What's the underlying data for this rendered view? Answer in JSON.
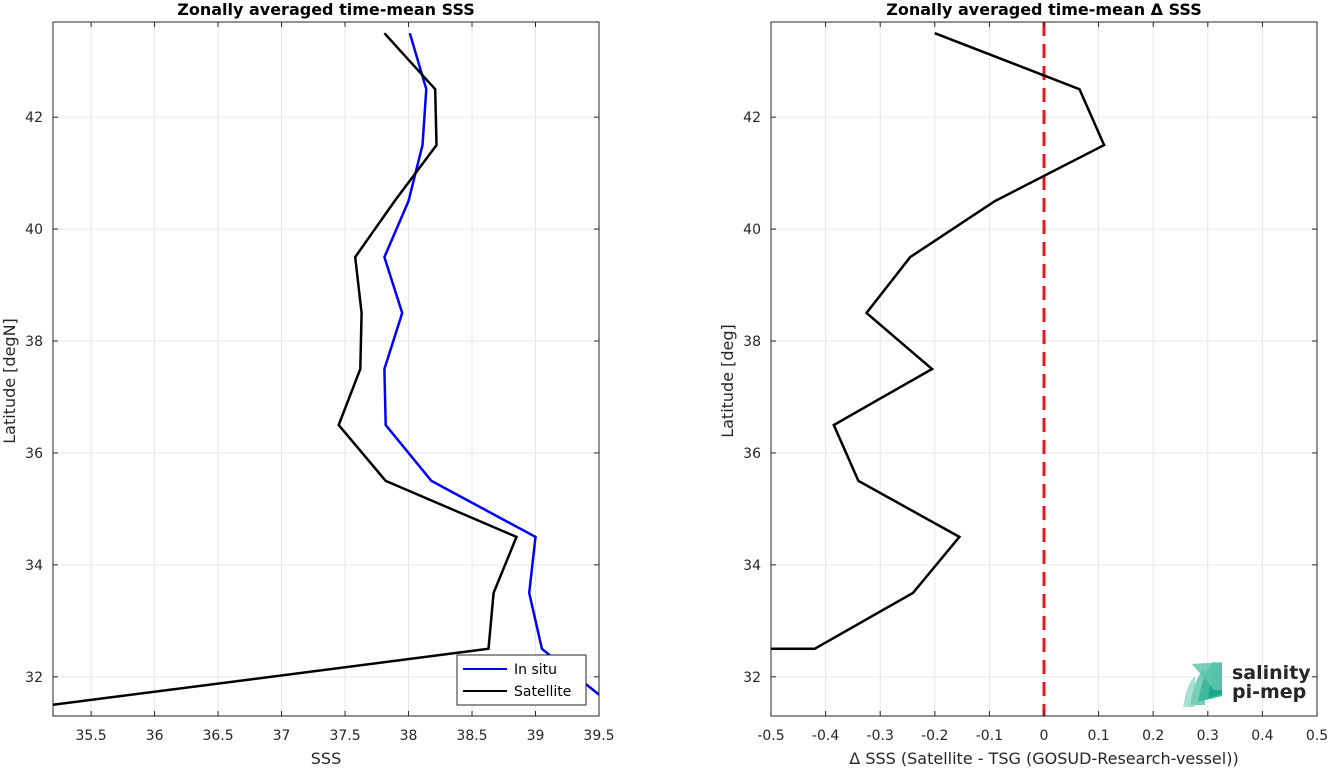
{
  "chart_data": [
    {
      "type": "line",
      "title": "Zonally averaged time-mean SSS",
      "xlabel": "SSS",
      "ylabel": "Latitude [degN]",
      "xlim": [
        35.2,
        39.5
      ],
      "ylim": [
        31.3,
        43.7
      ],
      "xticks": [
        "35.5",
        "36",
        "36.5",
        "37",
        "37.5",
        "38",
        "38.5",
        "39",
        "39.5"
      ],
      "yticks": [
        "32",
        "34",
        "36",
        "38",
        "40",
        "42"
      ],
      "grid": true,
      "legend_position": "bottom-right",
      "series": [
        {
          "name": "In situ",
          "color": "#0000ff",
          "x": [
            39.6,
            39.05,
            38.95,
            39.0,
            38.18,
            37.82,
            37.81,
            37.95,
            37.81,
            38.0,
            38.11,
            38.14,
            38.01
          ],
          "y": [
            31.5,
            32.5,
            33.5,
            34.5,
            35.5,
            36.5,
            37.5,
            38.5,
            39.5,
            40.5,
            41.5,
            42.5,
            43.5
          ]
        },
        {
          "name": "Satellite",
          "color": "#000000",
          "x": [
            35.2,
            38.63,
            38.67,
            38.85,
            37.82,
            37.45,
            37.62,
            37.63,
            37.58,
            37.89,
            38.22,
            38.21,
            37.81
          ],
          "y": [
            31.5,
            32.5,
            33.5,
            34.5,
            35.5,
            36.5,
            37.5,
            38.5,
            39.5,
            40.5,
            41.5,
            42.5,
            43.5
          ]
        }
      ]
    },
    {
      "type": "line",
      "title": "Zonally averaged time-mean Δ SSS",
      "xlabel": "Δ SSS (Satellite - TSG (GOSUD-Research-vessel))",
      "ylabel": "Latitude [deg]",
      "xlim": [
        -0.5,
        0.5
      ],
      "ylim": [
        31.3,
        43.7
      ],
      "xticks": [
        "-0.5",
        "-0.4",
        "-0.3",
        "-0.2",
        "-0.1",
        "0",
        "0.1",
        "0.2",
        "0.3",
        "0.4",
        "0.5"
      ],
      "yticks": [
        "32",
        "34",
        "36",
        "38",
        "40",
        "42"
      ],
      "grid": true,
      "reference_line": {
        "x": 0,
        "color": "#e41a1c",
        "style": "dashed"
      },
      "series": [
        {
          "color": "#000000",
          "x": [
            -0.5,
            -0.42,
            -0.24,
            -0.155,
            -0.34,
            -0.385,
            -0.205,
            -0.325,
            -0.245,
            -0.09,
            0.11,
            0.065,
            -0.2
          ],
          "y": [
            32.5,
            32.5,
            33.5,
            34.5,
            35.5,
            36.5,
            37.5,
            38.5,
            39.5,
            40.5,
            41.5,
            42.5,
            43.5
          ]
        }
      ]
    }
  ],
  "legend": {
    "entries": [
      {
        "label": "In situ",
        "color": "#0000ff"
      },
      {
        "label": "Satellite",
        "color": "#000000"
      }
    ]
  },
  "logo": {
    "line1": "salinity",
    "line2": "pi-mep",
    "color": "#1aa890"
  }
}
